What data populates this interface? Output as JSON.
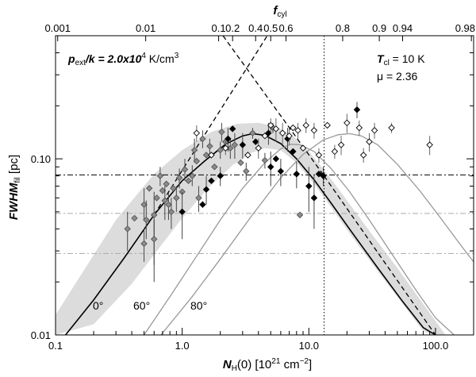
{
  "chart_data": {
    "type": "scatter",
    "xlabel": "N_H(0) [10^21 cm^-2]",
    "ylabel": "FWHM_fil [pc]",
    "top_axis_label": "f_cyl",
    "xscale": "log",
    "yscale": "log",
    "xlim": [
      0.1,
      200
    ],
    "ylim": [
      0.01,
      0.5
    ],
    "x_ticks": [
      {
        "value": 0.1,
        "label": "0.1"
      },
      {
        "value": 1,
        "label": "1.0"
      },
      {
        "value": 10,
        "label": "10.0"
      },
      {
        "value": 100,
        "label": "100.0"
      }
    ],
    "y_ticks": [
      {
        "value": 0.01,
        "label": "0.01"
      },
      {
        "value": 0.1,
        "label": "0.10"
      }
    ],
    "top_ticks": [
      {
        "value": 0.104,
        "label": "0.001"
      },
      {
        "value": 0.515,
        "label": "0.01"
      },
      {
        "value": 1.94,
        "label": "0.1"
      },
      {
        "value": 2.5,
        "label": "0.2"
      },
      {
        "value": 3.8,
        "label": "0.4"
      },
      {
        "value": 5.0,
        "label": "0.5"
      },
      {
        "value": 6.6,
        "label": "0.6"
      },
      {
        "value": 18.5,
        "label": "0.8"
      },
      {
        "value": 36.0,
        "label": "0.9"
      },
      {
        "value": 55.0,
        "label": "0.94"
      },
      {
        "value": 192.0,
        "label": "0.98"
      }
    ],
    "annotations": {
      "pressure_prefix": "p",
      "pressure_sub": "ext",
      "pressure_mid": "/k = 2.0x10",
      "pressure_exp": "4",
      "pressure_unit": " K/cm",
      "pressure_unit_exp": "3",
      "temp_prefix": "T",
      "temp_sub": "cl",
      "temp_value": " = 10 K",
      "mu_label": "μ  = 2.36",
      "curve_labels": [
        "0°",
        "60°",
        "80°"
      ]
    },
    "series": [
      {
        "name": "0° model",
        "style": "solid-black",
        "points": [
          [
            0.12,
            0.0095
          ],
          [
            0.2,
            0.0158
          ],
          [
            0.35,
            0.0275
          ],
          [
            0.6,
            0.048
          ],
          [
            1.0,
            0.075
          ],
          [
            1.5,
            0.097
          ],
          [
            2.2,
            0.121
          ],
          [
            3.0,
            0.135
          ],
          [
            3.6,
            0.139
          ],
          [
            4.5,
            0.136
          ],
          [
            6.0,
            0.122
          ],
          [
            8.0,
            0.1
          ],
          [
            11.0,
            0.076
          ],
          [
            15.0,
            0.056
          ],
          [
            22.0,
            0.038
          ],
          [
            35.0,
            0.024
          ],
          [
            55.0,
            0.0155
          ],
          [
            80.0,
            0.011
          ],
          [
            100.0,
            0.0088
          ]
        ]
      },
      {
        "name": "60° model",
        "style": "solid-grey",
        "points": [
          [
            0.5,
            0.0095
          ],
          [
            0.8,
            0.0165
          ],
          [
            1.3,
            0.028
          ],
          [
            2.0,
            0.045
          ],
          [
            3.0,
            0.068
          ],
          [
            4.5,
            0.095
          ],
          [
            6.0,
            0.114
          ],
          [
            7.2,
            0.121
          ],
          [
            8.5,
            0.12
          ],
          [
            11.0,
            0.11
          ],
          [
            15.0,
            0.088
          ],
          [
            21.0,
            0.065
          ],
          [
            30.0,
            0.045
          ],
          [
            45.0,
            0.029
          ],
          [
            70.0,
            0.018
          ],
          [
            100.0,
            0.0125
          ],
          [
            140.0,
            0.009
          ]
        ]
      },
      {
        "name": "80° model",
        "style": "solid-grey",
        "points": [
          [
            0.68,
            0.0095
          ],
          [
            1.2,
            0.0165
          ],
          [
            2.0,
            0.027
          ],
          [
            3.5,
            0.047
          ],
          [
            6.0,
            0.078
          ],
          [
            9.0,
            0.106
          ],
          [
            13.0,
            0.128
          ],
          [
            17.0,
            0.137
          ],
          [
            21.0,
            0.139
          ],
          [
            26.0,
            0.135
          ],
          [
            35.0,
            0.12
          ],
          [
            50.0,
            0.093
          ],
          [
            75.0,
            0.066
          ],
          [
            110.0,
            0.046
          ],
          [
            160.0,
            0.032
          ],
          [
            200.0,
            0.026
          ]
        ]
      },
      {
        "name": "shaded band upper",
        "style": "band",
        "points": [
          [
            0.1,
            0.013
          ],
          [
            0.3,
            0.045
          ],
          [
            0.6,
            0.082
          ],
          [
            1.0,
            0.112
          ],
          [
            1.7,
            0.142
          ],
          [
            2.7,
            0.158
          ],
          [
            4.0,
            0.16
          ],
          [
            5.5,
            0.153
          ],
          [
            7.5,
            0.135
          ],
          [
            10.0,
            0.11
          ],
          [
            14.0,
            0.082
          ],
          [
            20.0,
            0.058
          ],
          [
            30.0,
            0.039
          ],
          [
            50.0,
            0.024
          ],
          [
            75.0,
            0.016
          ],
          [
            100.0,
            0.012
          ],
          [
            120.0,
            0.0098
          ]
        ]
      },
      {
        "name": "shaded band lower",
        "style": "band",
        "points": [
          [
            0.1,
            0.0095
          ],
          [
            0.2,
            0.0115
          ],
          [
            0.4,
            0.0195
          ],
          [
            0.7,
            0.033
          ],
          [
            1.0,
            0.046
          ],
          [
            1.6,
            0.068
          ],
          [
            2.5,
            0.092
          ],
          [
            3.5,
            0.108
          ],
          [
            4.5,
            0.115
          ],
          [
            6.0,
            0.112
          ],
          [
            8.0,
            0.095
          ],
          [
            11.0,
            0.072
          ],
          [
            15.0,
            0.053
          ],
          [
            22.0,
            0.036
          ],
          [
            35.0,
            0.023
          ],
          [
            55.0,
            0.015
          ],
          [
            80.0,
            0.0105
          ],
          [
            95.0,
            0.0095
          ]
        ]
      }
    ],
    "dashed_lines": [
      {
        "name": "rising dashed asymptote",
        "points": [
          [
            0.6,
            0.048
          ],
          [
            4.7,
            0.5
          ]
        ]
      },
      {
        "name": "falling dashed asymptote",
        "points": [
          [
            2.1,
            0.5
          ],
          [
            13.2,
            0.08
          ]
        ]
      },
      {
        "name": "falling dashed asymptote lower",
        "points": [
          [
            13.2,
            0.08
          ],
          [
            100.0,
            0.0088
          ]
        ]
      }
    ],
    "reference_lines": [
      {
        "name": "dash-dot horizontal",
        "axis": "y",
        "value": 0.081,
        "style": "dashdot-black"
      },
      {
        "name": "grey dash-dot upper",
        "axis": "y",
        "value": 0.049,
        "style": "dashdot-grey"
      },
      {
        "name": "grey dash-dot lower",
        "axis": "y",
        "value": 0.029,
        "style": "dashdot-grey"
      },
      {
        "name": "dotted vertical",
        "axis": "x",
        "value": 13.2,
        "style": "dotted-black"
      }
    ],
    "observations": [
      {
        "x": 0.37,
        "y": 0.04,
        "type": "grey",
        "err": [
          0.03,
          0.05
        ]
      },
      {
        "x": 0.42,
        "y": 0.046,
        "type": "grey",
        "err": null
      },
      {
        "x": 0.5,
        "y": 0.055,
        "type": "grey",
        "err": [
          0.045,
          0.068
        ]
      },
      {
        "x": 0.5,
        "y": 0.033,
        "type": "grey",
        "err": [
          0.026,
          0.04
        ]
      },
      {
        "x": 0.52,
        "y": 0.045,
        "type": "grey",
        "err": [
          0.035,
          0.058
        ]
      },
      {
        "x": 0.55,
        "y": 0.068,
        "type": "grey",
        "err": null
      },
      {
        "x": 0.6,
        "y": 0.048,
        "type": "grey",
        "err": [
          0.02,
          0.065
        ]
      },
      {
        "x": 0.6,
        "y": 0.035,
        "type": "grey",
        "err": [
          0.025,
          0.045
        ]
      },
      {
        "x": 0.63,
        "y": 0.06,
        "type": "grey",
        "err": null
      },
      {
        "x": 0.67,
        "y": 0.08,
        "type": "grey",
        "err": [
          0.07,
          0.09
        ]
      },
      {
        "x": 0.7,
        "y": 0.066,
        "type": "grey",
        "err": null
      },
      {
        "x": 0.73,
        "y": 0.058,
        "type": "grey",
        "err": [
          0.045,
          0.07
        ]
      },
      {
        "x": 0.75,
        "y": 0.072,
        "type": "grey",
        "err": null
      },
      {
        "x": 0.78,
        "y": 0.055,
        "type": "grey",
        "err": [
          0.045,
          0.064
        ]
      },
      {
        "x": 0.82,
        "y": 0.05,
        "type": "grey",
        "err": [
          0.04,
          0.06
        ]
      },
      {
        "x": 0.85,
        "y": 0.068,
        "type": "grey",
        "err": null
      },
      {
        "x": 0.9,
        "y": 0.06,
        "type": "grey",
        "err": [
          0.05,
          0.07
        ]
      },
      {
        "x": 0.95,
        "y": 0.078,
        "type": "grey",
        "err": [
          0.068,
          0.088
        ]
      },
      {
        "x": 1.0,
        "y": 0.065,
        "type": "grey",
        "err": null
      },
      {
        "x": 1.05,
        "y": 0.087,
        "type": "grey",
        "err": [
          0.075,
          0.1
        ]
      },
      {
        "x": 1.12,
        "y": 0.075,
        "type": "grey",
        "err": null
      },
      {
        "x": 1.2,
        "y": 0.08,
        "type": "grey",
        "err": [
          0.07,
          0.092
        ]
      },
      {
        "x": 1.25,
        "y": 0.112,
        "type": "grey",
        "err": [
          0.095,
          0.13
        ]
      },
      {
        "x": 1.3,
        "y": 0.097,
        "type": "grey",
        "err": null
      },
      {
        "x": 1.35,
        "y": 0.06,
        "type": "grey",
        "err": [
          0.05,
          0.07
        ]
      },
      {
        "x": 1.45,
        "y": 0.13,
        "type": "grey",
        "err": [
          0.115,
          0.145
        ]
      },
      {
        "x": 1.55,
        "y": 0.105,
        "type": "grey",
        "err": null
      },
      {
        "x": 1.65,
        "y": 0.118,
        "type": "grey",
        "err": [
          0.105,
          0.13
        ]
      },
      {
        "x": 1.8,
        "y": 0.09,
        "type": "grey",
        "err": null
      },
      {
        "x": 2.0,
        "y": 0.112,
        "type": "grey",
        "err": [
          0.1,
          0.125
        ]
      },
      {
        "x": 2.05,
        "y": 0.142,
        "type": "grey",
        "err": [
          0.125,
          0.16
        ]
      },
      {
        "x": 2.2,
        "y": 0.125,
        "type": "grey",
        "err": null
      },
      {
        "x": 2.4,
        "y": 0.115,
        "type": "grey",
        "err": [
          0.1,
          0.13
        ]
      },
      {
        "x": 2.6,
        "y": 0.12,
        "type": "grey",
        "err": [
          0.1,
          0.14
        ]
      },
      {
        "x": 2.9,
        "y": 0.095,
        "type": "grey",
        "err": null
      },
      {
        "x": 3.2,
        "y": 0.085,
        "type": "grey",
        "err": [
          0.075,
          0.095
        ]
      },
      {
        "x": 3.6,
        "y": 0.14,
        "type": "grey",
        "err": [
          0.13,
          0.15
        ]
      },
      {
        "x": 5.2,
        "y": 0.15,
        "type": "grey",
        "err": [
          0.14,
          0.16
        ]
      },
      {
        "x": 4.5,
        "y": 0.098,
        "type": "grey",
        "err": [
          0.088,
          0.108
        ]
      },
      {
        "x": 8.5,
        "y": 0.048,
        "type": "grey",
        "err": null
      },
      {
        "x": 1.0,
        "y": 0.05,
        "type": "black",
        "err": [
          0.035,
          0.065
        ]
      },
      {
        "x": 1.45,
        "y": 0.055,
        "type": "black",
        "err": null
      },
      {
        "x": 1.55,
        "y": 0.067,
        "type": "black",
        "err": [
          0.055,
          0.08
        ]
      },
      {
        "x": 1.7,
        "y": 0.075,
        "type": "black",
        "err": null
      },
      {
        "x": 2.0,
        "y": 0.08,
        "type": "black",
        "err": [
          0.07,
          0.09
        ]
      },
      {
        "x": 2.3,
        "y": 0.13,
        "type": "black",
        "err": [
          0.11,
          0.15
        ]
      },
      {
        "x": 2.5,
        "y": 0.148,
        "type": "black",
        "err": null
      },
      {
        "x": 3.0,
        "y": 0.12,
        "type": "black",
        "err": [
          0.1,
          0.14
        ]
      },
      {
        "x": 3.8,
        "y": 0.125,
        "type": "black",
        "err": null
      },
      {
        "x": 4.8,
        "y": 0.14,
        "type": "black",
        "err": [
          0.12,
          0.16
        ]
      },
      {
        "x": 5.0,
        "y": 0.09,
        "type": "black",
        "err": [
          0.07,
          0.11
        ]
      },
      {
        "x": 5.5,
        "y": 0.1,
        "type": "black",
        "err": null
      },
      {
        "x": 6.0,
        "y": 0.085,
        "type": "black",
        "err": [
          0.07,
          0.1
        ]
      },
      {
        "x": 6.8,
        "y": 0.13,
        "type": "black",
        "err": [
          0.11,
          0.15
        ]
      },
      {
        "x": 7.5,
        "y": 0.11,
        "type": "black",
        "err": null
      },
      {
        "x": 8.0,
        "y": 0.082,
        "type": "black",
        "err": [
          0.068,
          0.096
        ]
      },
      {
        "x": 10.0,
        "y": 0.07,
        "type": "black",
        "err": [
          0.05,
          0.09
        ]
      },
      {
        "x": 11.0,
        "y": 0.06,
        "type": "black",
        "err": [
          0.04,
          0.08
        ]
      },
      {
        "x": 12.0,
        "y": 0.082,
        "type": "black",
        "err": null
      },
      {
        "x": 13.0,
        "y": 0.08,
        "type": "black",
        "err": [
          0.07,
          0.09
        ]
      },
      {
        "x": 24.0,
        "y": 0.19,
        "type": "black",
        "err": [
          0.17,
          0.21
        ]
      },
      {
        "x": 1.3,
        "y": 0.14,
        "type": "open",
        "err": [
          0.125,
          0.155
        ]
      },
      {
        "x": 1.7,
        "y": 0.105,
        "type": "open",
        "err": null
      },
      {
        "x": 2.2,
        "y": 0.115,
        "type": "open",
        "err": [
          0.105,
          0.128
        ]
      },
      {
        "x": 3.3,
        "y": 0.105,
        "type": "open",
        "err": null
      },
      {
        "x": 4.0,
        "y": 0.115,
        "type": "open",
        "err": [
          0.1,
          0.13
        ]
      },
      {
        "x": 4.5,
        "y": 0.135,
        "type": "open",
        "err": null
      },
      {
        "x": 5.0,
        "y": 0.155,
        "type": "open",
        "err": [
          0.14,
          0.17
        ]
      },
      {
        "x": 5.5,
        "y": 0.148,
        "type": "open",
        "err": [
          0.125,
          0.17
        ]
      },
      {
        "x": 6.2,
        "y": 0.14,
        "type": "open",
        "err": [
          0.12,
          0.16
        ]
      },
      {
        "x": 7.0,
        "y": 0.135,
        "type": "open",
        "err": [
          0.12,
          0.15
        ]
      },
      {
        "x": 7.5,
        "y": 0.15,
        "type": "open",
        "err": null
      },
      {
        "x": 8.2,
        "y": 0.145,
        "type": "open",
        "err": [
          0.13,
          0.16
        ]
      },
      {
        "x": 9.0,
        "y": 0.115,
        "type": "open",
        "err": null
      },
      {
        "x": 9.5,
        "y": 0.155,
        "type": "open",
        "err": [
          0.14,
          0.17
        ]
      },
      {
        "x": 11.0,
        "y": 0.145,
        "type": "open",
        "err": [
          0.13,
          0.16
        ]
      },
      {
        "x": 12.0,
        "y": 0.105,
        "type": "open",
        "err": [
          0.095,
          0.115
        ]
      },
      {
        "x": 14.0,
        "y": 0.155,
        "type": "open",
        "err": null
      },
      {
        "x": 16.0,
        "y": 0.11,
        "type": "open",
        "err": [
          0.1,
          0.12
        ]
      },
      {
        "x": 18.0,
        "y": 0.12,
        "type": "open",
        "err": [
          0.105,
          0.135
        ]
      },
      {
        "x": 20.0,
        "y": 0.16,
        "type": "open",
        "err": [
          0.14,
          0.18
        ]
      },
      {
        "x": 25.0,
        "y": 0.15,
        "type": "open",
        "err": [
          0.135,
          0.165
        ]
      },
      {
        "x": 27.0,
        "y": 0.105,
        "type": "open",
        "err": [
          0.095,
          0.115
        ]
      },
      {
        "x": 30.0,
        "y": 0.125,
        "type": "open",
        "err": [
          0.11,
          0.14
        ]
      },
      {
        "x": 33.0,
        "y": 0.145,
        "type": "open",
        "err": [
          0.13,
          0.16
        ]
      },
      {
        "x": 45.0,
        "y": 0.15,
        "type": "open",
        "err": [
          0.14,
          0.16
        ]
      },
      {
        "x": 90.0,
        "y": 0.12,
        "type": "open",
        "err": [
          0.105,
          0.135
        ]
      }
    ]
  }
}
